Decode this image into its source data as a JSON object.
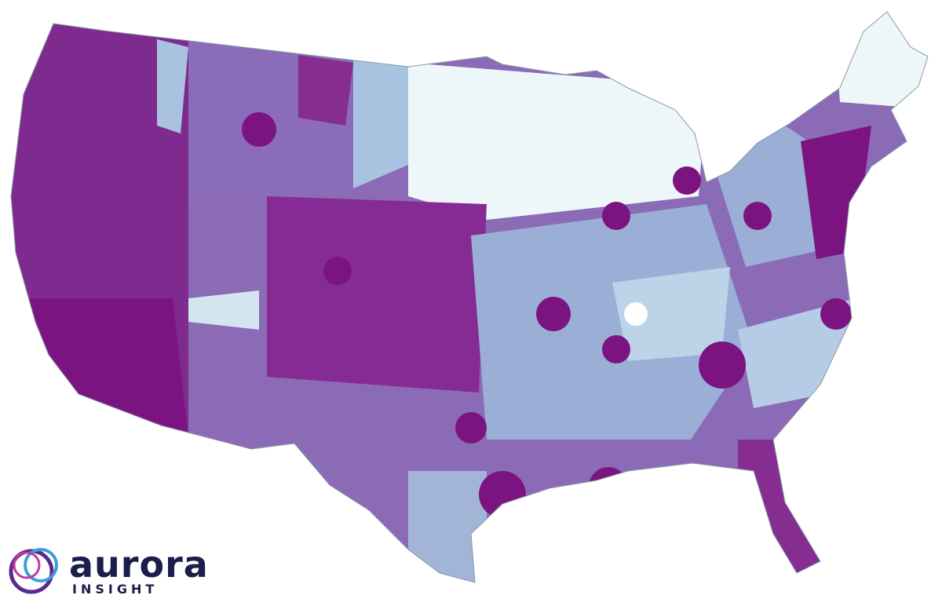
{
  "logo": {
    "name": "aurora",
    "tagline": "INSIGHT"
  }
}
